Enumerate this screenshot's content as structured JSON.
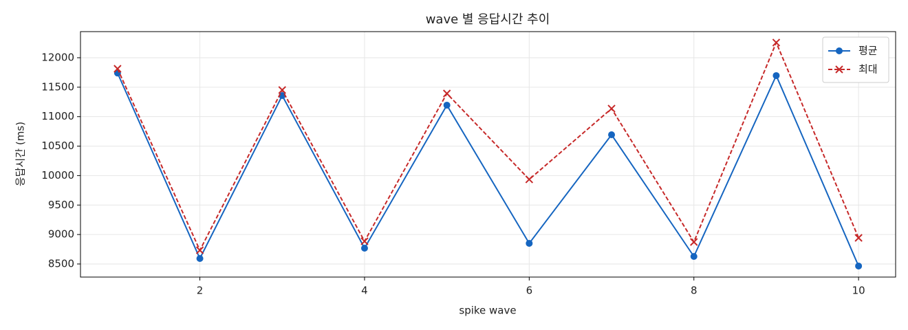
{
  "chart_data": {
    "type": "line",
    "title": "wave 별 응답시간 추이",
    "xlabel": "spike wave",
    "ylabel": "응답시간 (ms)",
    "x": [
      1,
      2,
      3,
      4,
      5,
      6,
      7,
      8,
      9,
      10
    ],
    "series": [
      {
        "name": "평균",
        "color": "#1565c0",
        "marker": "circle",
        "linestyle": "solid",
        "values": [
          11740,
          8593,
          11358,
          8768,
          11195,
          8850,
          10693,
          8628,
          11697,
          8465
        ]
      },
      {
        "name": "최대",
        "color": "#c62828",
        "marker": "x",
        "linestyle": "dashed",
        "values": [
          11813,
          8733,
          11452,
          8885,
          11393,
          9935,
          11137,
          8873,
          12257,
          8943
        ]
      }
    ],
    "xlim": [
      0.55,
      10.45
    ],
    "xticks": [
      2,
      4,
      6,
      8,
      10
    ],
    "ylim": [
      8278,
      12443
    ],
    "yticks": [
      8500,
      9000,
      9500,
      10000,
      10500,
      11000,
      11500,
      12000
    ],
    "grid": true,
    "legend": "upper right"
  }
}
